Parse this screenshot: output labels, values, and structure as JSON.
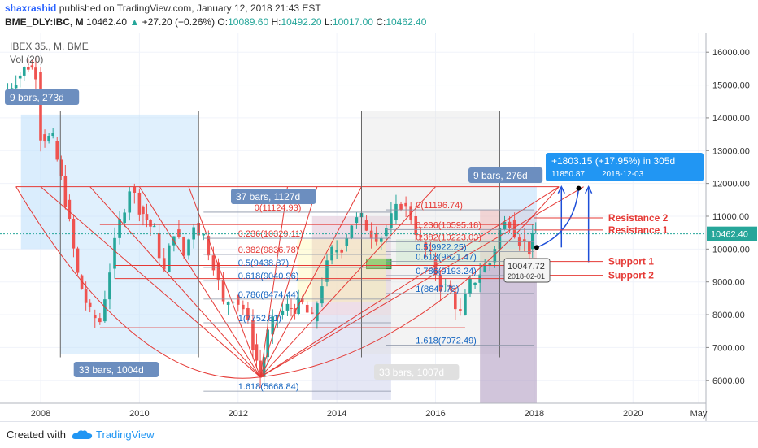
{
  "header": {
    "author": "shaxrashid",
    "published": "published on TradingView.com, January 12, 2018 21:43 EST",
    "symbol": "BME_DLY:IBC, M",
    "last": "10462.40",
    "change": "+27.20 (+0.26%)",
    "o_label": "O:",
    "o_val": "10089.60",
    "h_label": "H:",
    "h_val": "10492.20",
    "l_label": "L:",
    "l_val": "10017.00",
    "c_label": "C:",
    "c_val": "10462.40"
  },
  "legend": {
    "series": "IBEX 35., M, BME",
    "volume": "Vol (20)"
  },
  "footer": {
    "created": "Created with",
    "brand": "TradingView"
  },
  "colors": {
    "up": "#26a69a",
    "down": "#ef5350",
    "red": "#e53935",
    "blue": "#1e4fd8",
    "accent": "#2196f3"
  },
  "chart_data": {
    "type": "candlestick",
    "ylim": [
      5300,
      16600
    ],
    "y_ticks": [
      6000,
      7000,
      8000,
      9000,
      10000,
      11000,
      12000,
      13000,
      14000,
      15000,
      16000
    ],
    "y_tick_labels": [
      "6000.00",
      "7000.00",
      "8000.00",
      "9000.00",
      "10000.00",
      "11000.00",
      "12000.00",
      "13000.00",
      "14000.00",
      "15000.00",
      "16000.00"
    ],
    "x_range": [
      2007.2,
      2021.3
    ],
    "x_ticks": [
      {
        "x": 2008,
        "label": "2008"
      },
      {
        "x": 2010,
        "label": "2010"
      },
      {
        "x": 2012,
        "label": "2012"
      },
      {
        "x": 2014,
        "label": "2014"
      },
      {
        "x": 2016,
        "label": "2016"
      },
      {
        "x": 2018,
        "label": "2018"
      },
      {
        "x": 2020,
        "label": "2020"
      },
      {
        "x": 2021.33,
        "label": "May"
      }
    ],
    "last_price": {
      "value": 10462.4,
      "label": "10462.40"
    },
    "close_path": [
      [
        2007.25,
        14700
      ],
      [
        2007.5,
        15200
      ],
      [
        2007.75,
        15600
      ],
      [
        2007.9,
        15400
      ],
      [
        2008.0,
        13500
      ],
      [
        2008.25,
        13300
      ],
      [
        2008.5,
        11500
      ],
      [
        2008.75,
        9200
      ],
      [
        2009.0,
        8000
      ],
      [
        2009.2,
        7800
      ],
      [
        2009.4,
        9400
      ],
      [
        2009.6,
        10800
      ],
      [
        2009.8,
        11900
      ],
      [
        2010.0,
        11300
      ],
      [
        2010.3,
        10500
      ],
      [
        2010.5,
        9300
      ],
      [
        2010.7,
        10600
      ],
      [
        2010.9,
        9800
      ],
      [
        2011.1,
        10800
      ],
      [
        2011.3,
        10400
      ],
      [
        2011.5,
        9600
      ],
      [
        2011.7,
        8300
      ],
      [
        2011.9,
        8600
      ],
      [
        2012.1,
        8200
      ],
      [
        2012.3,
        7100
      ],
      [
        2012.45,
        6100
      ],
      [
        2012.6,
        7400
      ],
      [
        2012.8,
        8000
      ],
      [
        2013.0,
        8200
      ],
      [
        2013.3,
        8300
      ],
      [
        2013.5,
        7800
      ],
      [
        2013.7,
        9000
      ],
      [
        2013.9,
        9900
      ],
      [
        2014.1,
        10100
      ],
      [
        2014.3,
        10800
      ],
      [
        2014.5,
        10900
      ],
      [
        2014.7,
        10500
      ],
      [
        2014.9,
        10400
      ],
      [
        2015.1,
        10900
      ],
      [
        2015.3,
        11400
      ],
      [
        2015.5,
        11000
      ],
      [
        2015.7,
        10200
      ],
      [
        2015.9,
        9700
      ],
      [
        2016.1,
        8900
      ],
      [
        2016.3,
        8700
      ],
      [
        2016.5,
        8000
      ],
      [
        2016.7,
        8900
      ],
      [
        2016.9,
        9300
      ],
      [
        2017.1,
        9600
      ],
      [
        2017.3,
        10600
      ],
      [
        2017.5,
        10900
      ],
      [
        2017.7,
        10300
      ],
      [
        2017.9,
        10000
      ],
      [
        2018.03,
        10462
      ]
    ],
    "fib_levels": [
      {
        "label": "0(11124.93)",
        "value": 11124.93
      },
      {
        "label": "0.236(10329.11)",
        "value": 10329.11
      },
      {
        "label": "0.382(9836.78)",
        "value": 9836.78
      },
      {
        "label": "0.5(9438.87)",
        "value": 9438.87
      },
      {
        "label": "0.618(9040.96)",
        "value": 9040.96
      },
      {
        "label": "0.786(8474.44)",
        "value": 8474.44
      },
      {
        "label": "1(7752.81)",
        "value": 7752.81
      },
      {
        "label": "1.618(5668.84)",
        "value": 5668.84
      }
    ],
    "fib_levels_2": [
      {
        "label": "0(11196.74)",
        "value": 11196.74
      },
      {
        "label": "0.236(10595.18)",
        "value": 10595.18
      },
      {
        "label": "0.382(10223.03)",
        "value": 10223.03
      },
      {
        "label": "0.5(9922.25)",
        "value": 9922.25
      },
      {
        "label": "0.618(9621.47)",
        "value": 9621.47
      },
      {
        "label": "0.786(9193.24)",
        "value": 9193.24
      },
      {
        "label": "1(8647.78)",
        "value": 8647.78
      },
      {
        "label": "1.618(7072.49)",
        "value": 7072.49
      }
    ],
    "horizontal_levels": [
      {
        "label": "Resistance 2",
        "value": 10950
      },
      {
        "label": "Resistance 1",
        "value": 10580
      },
      {
        "label": "Support 1",
        "value": 9620
      },
      {
        "label": "Support 2",
        "value": 9200
      }
    ],
    "annotations": [
      {
        "text": "9 bars, 273d"
      },
      {
        "text": "33 bars, 1004d"
      },
      {
        "text": "37 bars, 1127d"
      },
      {
        "text": "33 bars, 1007d"
      },
      {
        "text": "9 bars, 276d"
      },
      {
        "text": "+1803.15 (+17.95%) in 305d"
      },
      {
        "text": "11850.87"
      },
      {
        "text": "2018-12-03"
      },
      {
        "text": "10047.72"
      },
      {
        "text": "2018-02-01"
      }
    ]
  }
}
